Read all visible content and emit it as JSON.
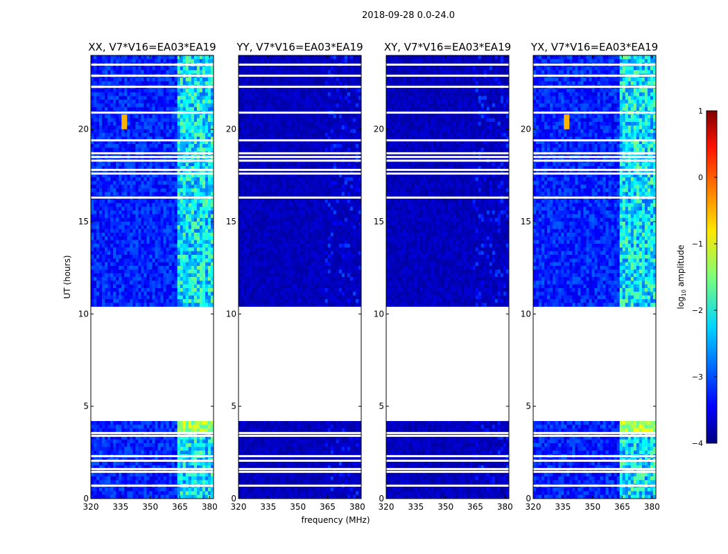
{
  "figure": {
    "suptitle": "2018-09-28 0.0-24.0"
  },
  "chart_data": {
    "type": "heatmap",
    "xlabel": "frequency (MHz)",
    "ylabel": "UT (hours)",
    "xlim": [
      320,
      382
    ],
    "ylim": [
      0,
      24
    ],
    "xticks": [
      320,
      335,
      350,
      365,
      380
    ],
    "yticks": [
      0,
      5,
      10,
      15,
      20
    ],
    "data_gap_hours": [
      4.3,
      10.4
    ],
    "rfi_band_mhz": [
      363,
      382
    ],
    "panels": [
      {
        "name": "XX",
        "title": "XX, V7*V16=EA03*EA19",
        "level": "high"
      },
      {
        "name": "YY",
        "title": "YY, V7*V16=EA03*EA19",
        "level": "low"
      },
      {
        "name": "XY",
        "title": "XY, V7*V16=EA03*EA19",
        "level": "low"
      },
      {
        "name": "YX",
        "title": "YX, V7*V16=EA03*EA19",
        "level": "high"
      }
    ],
    "flagged_hours": [
      0.7,
      1.45,
      1.6,
      2.05,
      2.3,
      3.4,
      3.55,
      16.3,
      17.6,
      17.8,
      18.3,
      18.5,
      18.7,
      19.4,
      20.9,
      22.3,
      22.9,
      23.5
    ],
    "colorbar": {
      "label": "log10 amplitude",
      "min": -4,
      "max": 1,
      "ticks": [
        -4,
        -3,
        -2,
        -1,
        0,
        1
      ],
      "colormap": "jet"
    }
  }
}
